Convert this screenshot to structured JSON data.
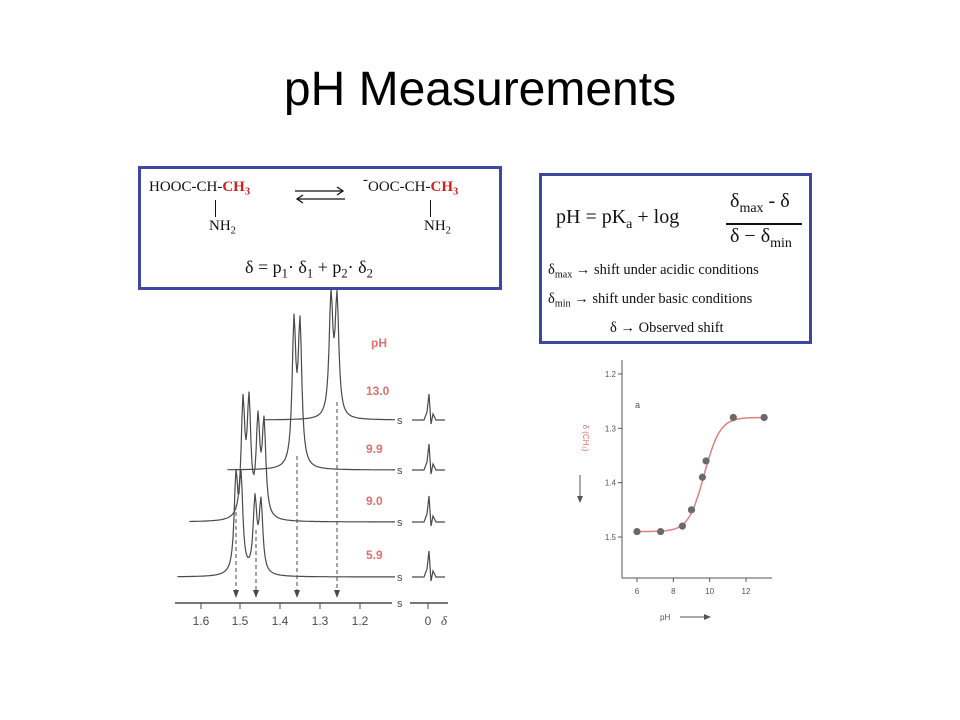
{
  "title": "pH Measurements",
  "equilibrium": {
    "left_prefix": "HOOC-CH-",
    "left_ch3": "CH",
    "left_ch3_sub": "3",
    "left_nh": "NH",
    "left_nh_sub": "2",
    "right_minus": "-",
    "right_prefix": "OOC-CH-",
    "right_ch3": "CH",
    "right_ch3_sub": "3",
    "right_nh": "NH",
    "right_nh_sub": "2",
    "delta_eq": {
      "lhs": "δ = p",
      "p1_sub": "1",
      "mid1": "· δ",
      "d1_sub": "1",
      "plus": " + p",
      "p2_sub": "2",
      "mid2": "· δ",
      "d2_sub": "2"
    }
  },
  "formula": {
    "lhs": "pH = pK",
    "lhs_sub": "a",
    "plus_log": " + log",
    "num": "δ",
    "num_sub": "max",
    "num_rest": " - δ",
    "den": "δ − δ",
    "den_sub": "min",
    "defs": [
      {
        "sym": "δ",
        "sub": "max",
        "text": " → shift under acidic conditions"
      },
      {
        "sym": "δ",
        "sub": "min",
        "text": " → shift under basic conditions"
      },
      {
        "sym": "δ",
        "sub": "",
        "text": " → Observed shift"
      }
    ]
  },
  "spectrum": {
    "ph_header": "pH",
    "ph_values": [
      "13.0",
      "9.9",
      "9.0",
      "5.9"
    ],
    "x_ticks": [
      "1.6",
      "1.5",
      "1.4",
      "1.3",
      "1.2"
    ],
    "zero_tick": "0",
    "delta_symbol": "δ",
    "break_mark": "s"
  },
  "titration": {
    "panel_label": "a",
    "y_label": "δ (CH₃)",
    "x_label": "pH",
    "y_ticks": [
      "1.2",
      "1.3",
      "1.4",
      "1.5"
    ],
    "x_ticks": [
      "6",
      "8",
      "10",
      "12"
    ],
    "points": [
      {
        "ph": 6.0,
        "delta": 1.49
      },
      {
        "ph": 7.3,
        "delta": 1.49
      },
      {
        "ph": 8.5,
        "delta": 1.48
      },
      {
        "ph": 9.0,
        "delta": 1.45
      },
      {
        "ph": 9.6,
        "delta": 1.39
      },
      {
        "ph": 9.8,
        "delta": 1.36
      },
      {
        "ph": 11.3,
        "delta": 1.28
      },
      {
        "ph": 13.0,
        "delta": 1.28
      }
    ],
    "colors": {
      "curve": "#e08080",
      "points": "#6a6a6a",
      "axis": "#555555"
    }
  }
}
